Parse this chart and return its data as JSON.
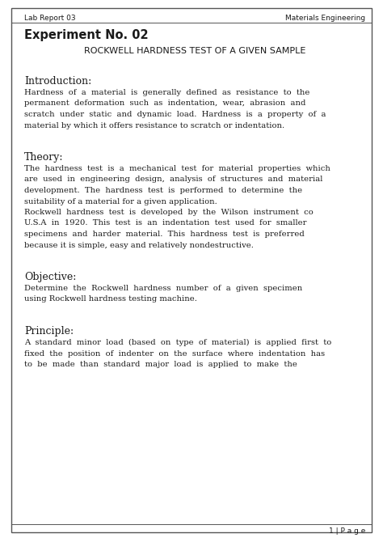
{
  "header_left": "Lab Report 03",
  "header_right": "Materials Engineering",
  "experiment_label": "Experiment No. 02",
  "title": "ROCKWELL HARDNESS TEST OF A GIVEN SAMPLE",
  "sections": [
    {
      "heading": "Introduction:",
      "body_lines": [
        "Hardness  of  a  material  is  generally  defined  as  resistance  to  the",
        "permanent  deformation  such  as  indentation,  wear,  abrasion  and",
        "scratch  under  static  and  dynamic  load.  Hardness  is  a  property  of  a",
        "material by which it offers resistance to scratch or indentation."
      ]
    },
    {
      "heading": "Theory:",
      "body_lines": [
        "The  hardness  test  is  a  mechanical  test  for  material  properties  which",
        "are  used  in  engineering  design,  analysis  of  structures  and  material",
        "development.  The  hardness  test  is  performed  to  determine  the",
        "suitability of a material for a given application.",
        "Rockwell  hardness  test  is  developed  by  the  Wilson  instrument  co",
        "U.S.A  in  1920.  This  test  is  an  indentation  test  used  for  smaller",
        "specimens  and  harder  material.  This  hardness  test  is  preferred",
        "because it is simple, easy and relatively nondestructive."
      ]
    },
    {
      "heading": "Objective:",
      "body_lines": [
        "Determine  the  Rockwell  hardness  number  of  a  given  specimen",
        "using Rockwell hardness testing machine."
      ]
    },
    {
      "heading": "Principle:",
      "body_lines": [
        "A  standard  minor  load  (based  on  type  of  material)  is  applied  first  to",
        "fixed  the  position  of  indenter  on  the  surface  where  indentation  has",
        "to  be  made  than  standard  major  load  is  applied  to  make  the"
      ]
    }
  ],
  "footer": "1 | P a g e",
  "bg_color": "#ffffff",
  "text_color": "#1a1a1a",
  "border_color": "#555555",
  "header_fontsize": 6.5,
  "experiment_fontsize": 10.5,
  "title_fontsize": 8.0,
  "heading_fontsize": 9.0,
  "body_fontsize": 7.2,
  "footer_fontsize": 6.5
}
